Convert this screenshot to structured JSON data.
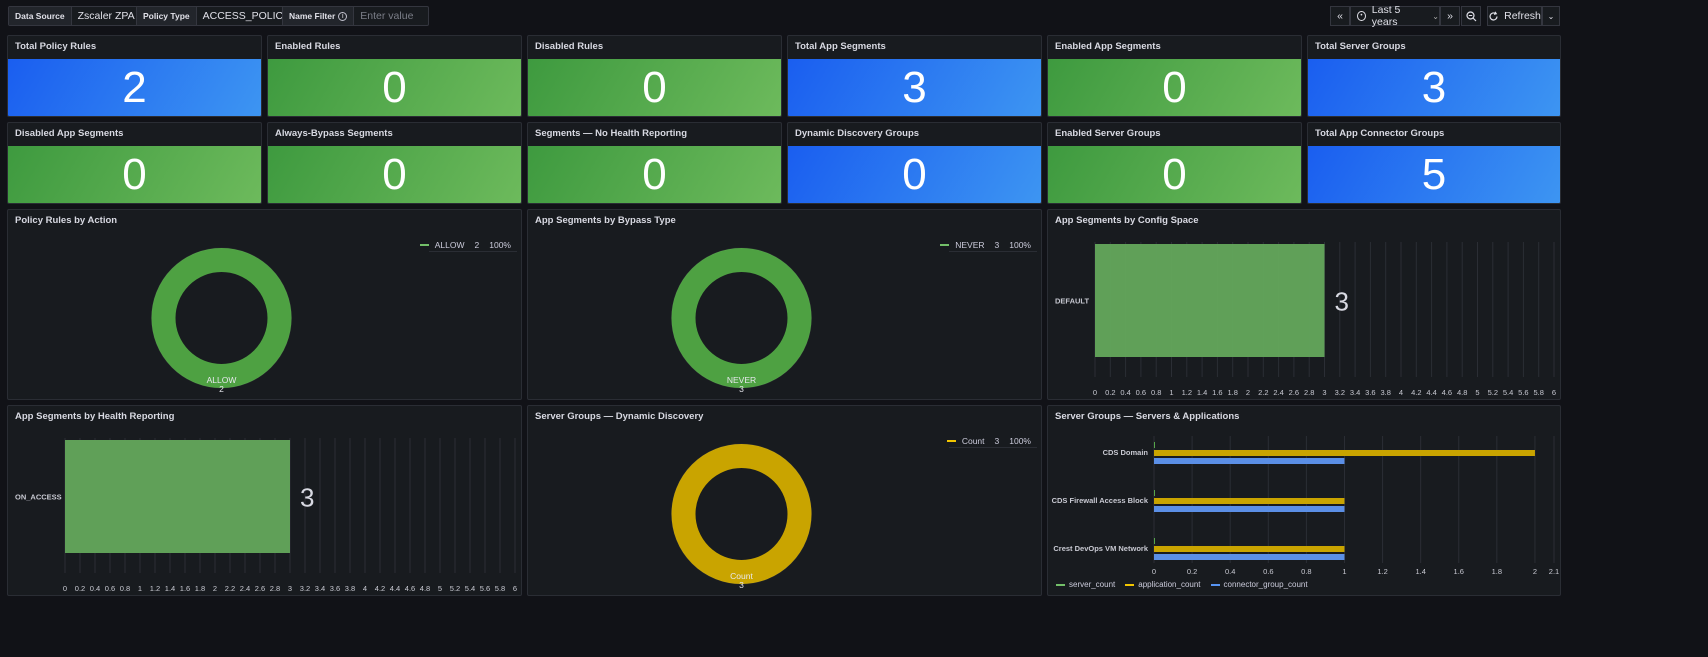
{
  "toolbar": {
    "data_source": {
      "label": "Data Source",
      "value": "Zscaler ZPA"
    },
    "policy_type": {
      "label": "Policy Type",
      "value": "ACCESS_POLICY"
    },
    "name_filter": {
      "label": "Name Filter",
      "placeholder": "Enter value"
    },
    "time_range": "Last 5 years",
    "refresh": "Refresh"
  },
  "stats": [
    {
      "title": "Total Policy Rules",
      "value": "2",
      "color": "blue"
    },
    {
      "title": "Enabled Rules",
      "value": "0",
      "color": "green"
    },
    {
      "title": "Disabled Rules",
      "value": "0",
      "color": "green"
    },
    {
      "title": "Total App Segments",
      "value": "3",
      "color": "blue"
    },
    {
      "title": "Enabled App Segments",
      "value": "0",
      "color": "green"
    },
    {
      "title": "Total Server Groups",
      "value": "3",
      "color": "blue"
    },
    {
      "title": "Disabled App Segments",
      "value": "0",
      "color": "green"
    },
    {
      "title": "Always-Bypass Segments",
      "value": "0",
      "color": "green"
    },
    {
      "title": "Segments — No Health Reporting",
      "value": "0",
      "color": "green"
    },
    {
      "title": "Dynamic Discovery Groups",
      "value": "0",
      "color": "blue"
    },
    {
      "title": "Enabled Server Groups",
      "value": "0",
      "color": "green"
    },
    {
      "title": "Total App Connector Groups",
      "value": "5",
      "color": "blue"
    }
  ],
  "colors": {
    "blue_start": "#1a5ef0",
    "blue_end": "#3d95f2",
    "green_start": "#3e9a3f",
    "green_end": "#6dba5c",
    "bar_green": "#64a85c",
    "yellow": "#c9a400",
    "server_green": "#56a64b",
    "connector_blue": "#5b8fe6"
  },
  "donuts": [
    {
      "title": "Policy Rules by Action",
      "legend": {
        "name": "ALLOW",
        "value": "2",
        "pct": "100%"
      },
      "center_label": "ALLOW",
      "center_value": "2",
      "color": "#4ea142"
    },
    {
      "title": "App Segments by Bypass Type",
      "legend": {
        "name": "NEVER",
        "value": "3",
        "pct": "100%"
      },
      "center_label": "NEVER",
      "center_value": "3",
      "color": "#4ea142"
    },
    {
      "title": "Server Groups — Dynamic Discovery",
      "legend": {
        "name": "Count",
        "value": "3",
        "pct": "100%"
      },
      "center_label": "Count",
      "center_value": "3",
      "color": "#c9a400"
    }
  ],
  "bars": [
    {
      "title": "App Segments by Config Space",
      "category": "DEFAULT",
      "value": "3"
    },
    {
      "title": "App Segments by Health Reporting",
      "category": "ON_ACCESS",
      "value": "3"
    }
  ],
  "grouped": {
    "title": "Server Groups — Servers & Applications",
    "legend": [
      "server_count",
      "application_count",
      "connector_group_count"
    ]
  },
  "chart_data": [
    {
      "type": "pie",
      "title": "Policy Rules by Action",
      "categories": [
        "ALLOW"
      ],
      "values": [
        2
      ]
    },
    {
      "type": "pie",
      "title": "App Segments by Bypass Type",
      "categories": [
        "NEVER"
      ],
      "values": [
        3
      ]
    },
    {
      "type": "bar",
      "title": "App Segments by Config Space",
      "categories": [
        "DEFAULT"
      ],
      "values": [
        3
      ],
      "xlim": [
        0,
        6
      ],
      "ticks": [
        "0",
        "0.2",
        "0.4",
        "0.6",
        "0.8",
        "1",
        "1.2",
        "1.4",
        "1.6",
        "1.8",
        "2",
        "2.2",
        "2.4",
        "2.6",
        "2.8",
        "3",
        "3.2",
        "3.4",
        "3.6",
        "3.8",
        "4",
        "4.2",
        "4.4",
        "4.6",
        "4.8",
        "5",
        "5.2",
        "5.4",
        "5.6",
        "5.8",
        "6"
      ]
    },
    {
      "type": "bar",
      "title": "App Segments by Health Reporting",
      "categories": [
        "ON_ACCESS"
      ],
      "values": [
        3
      ],
      "xlim": [
        0,
        6
      ],
      "ticks": [
        "0",
        "0.2",
        "0.4",
        "0.6",
        "0.8",
        "1",
        "1.2",
        "1.4",
        "1.6",
        "1.8",
        "2",
        "2.2",
        "2.4",
        "2.6",
        "2.8",
        "3",
        "3.2",
        "3.4",
        "3.6",
        "3.8",
        "4",
        "4.2",
        "4.4",
        "4.6",
        "4.8",
        "5",
        "5.2",
        "5.4",
        "5.6",
        "5.8",
        "6"
      ]
    },
    {
      "type": "pie",
      "title": "Server Groups — Dynamic Discovery",
      "categories": [
        "Count"
      ],
      "values": [
        3
      ]
    },
    {
      "type": "bar",
      "title": "Server Groups — Servers & Applications",
      "categories": [
        "CDS Domain",
        "CDS Firewall Access Block",
        "Crest DevOps VM Network"
      ],
      "series": [
        {
          "name": "server_count",
          "values": [
            0,
            0,
            0
          ]
        },
        {
          "name": "application_count",
          "values": [
            2,
            1,
            1
          ]
        },
        {
          "name": "connector_group_count",
          "values": [
            1,
            1,
            1
          ]
        }
      ],
      "xlim": [
        0,
        2.1
      ],
      "ticks": [
        "0",
        "0.2",
        "0.4",
        "0.6",
        "0.8",
        "1",
        "1.2",
        "1.4",
        "1.6",
        "1.8",
        "2",
        "2.1"
      ]
    }
  ]
}
